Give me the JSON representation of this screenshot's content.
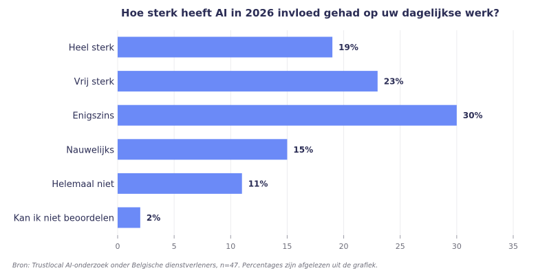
{
  "chart_data": {
    "type": "bar",
    "orientation": "horizontal",
    "title": "Hoe sterk heeft AI in 2026 invloed gehad op uw dagelijkse werk?",
    "categories": [
      "Heel sterk",
      "Vrij sterk",
      "Enigszins",
      "Nauwelijks",
      "Helemaal niet",
      "Kan ik niet beoordelen"
    ],
    "values": [
      19,
      23,
      30,
      15,
      11,
      2
    ],
    "value_labels": [
      "19%",
      "23%",
      "30%",
      "15%",
      "11%",
      "2%"
    ],
    "xlim": [
      0,
      35
    ],
    "xticks": [
      0,
      5,
      10,
      15,
      20,
      25,
      30,
      35
    ],
    "xlabel": "",
    "ylabel": "",
    "grid": "vertical",
    "bar_color": "#6b8af7",
    "source": "Bron: Trustlocal AI-onderzoek onder Belgische dienstverleners, n=47. Percentages zijn afgelezen uit de grafiek."
  }
}
